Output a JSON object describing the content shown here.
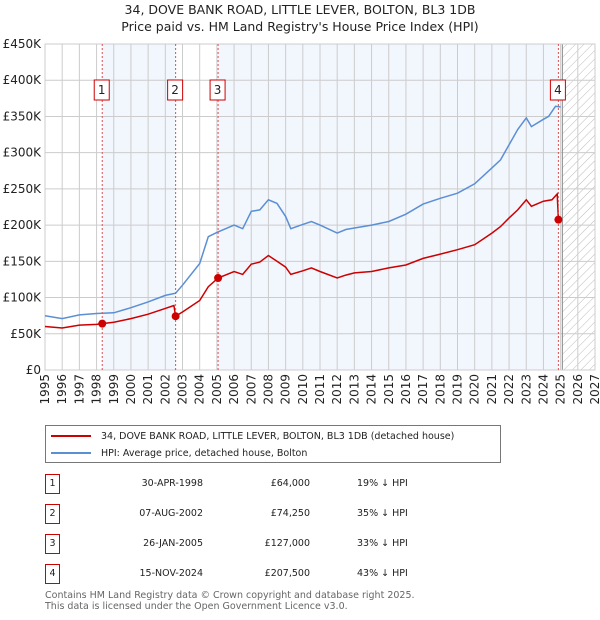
{
  "title_line1": "34, DOVE BANK ROAD, LITTLE LEVER, BOLTON, BL3 1DB",
  "title_line2": "Price paid vs. HM Land Registry's House Price Index (HPI)",
  "legend": {
    "property": "34, DOVE BANK ROAD, LITTLE LEVER, BOLTON, BL3 1DB (detached house)",
    "hpi": "HPI: Average price, detached house, Bolton"
  },
  "colors": {
    "property": "#cc0000",
    "hpi": "#5b8fd4",
    "shade": "#f2f6fd"
  },
  "sales": [
    {
      "num": "1",
      "date": "30-APR-1998",
      "price": "£64,000",
      "hpi_diff": "19% ↓ HPI",
      "x": 1998.33,
      "y": 64000
    },
    {
      "num": "2",
      "date": "07-AUG-2002",
      "price": "£74,250",
      "hpi_diff": "35% ↓ HPI",
      "x": 2002.6,
      "y": 74250
    },
    {
      "num": "3",
      "date": "26-JAN-2005",
      "price": "£127,000",
      "hpi_diff": "33% ↓ HPI",
      "x": 2005.07,
      "y": 127000
    },
    {
      "num": "4",
      "date": "15-NOV-2024",
      "price": "£207,500",
      "hpi_diff": "43% ↓ HPI",
      "x": 2024.87,
      "y": 207500
    }
  ],
  "footer_line1": "Contains HM Land Registry data © Crown copyright and database right 2025.",
  "footer_line2": "This data is licensed under the Open Government Licence v3.0.",
  "chart_data": {
    "type": "line",
    "title": "34, DOVE BANK ROAD, LITTLE LEVER, BOLTON, BL3 1DB — Price paid vs. HM Land Registry's House Price Index (HPI)",
    "xlim": [
      1995,
      2027
    ],
    "ylim": [
      0,
      450000
    ],
    "x_ticks": [
      "1995",
      "1996",
      "1997",
      "1998",
      "1999",
      "2000",
      "2001",
      "2002",
      "2003",
      "2004",
      "2005",
      "2006",
      "2007",
      "2008",
      "2009",
      "2010",
      "2011",
      "2012",
      "2013",
      "2014",
      "2015",
      "2016",
      "2017",
      "2018",
      "2019",
      "2020",
      "2021",
      "2022",
      "2023",
      "2024",
      "2025",
      "2026",
      "2027"
    ],
    "y_ticks": [
      {
        "v": 0,
        "label": "£0"
      },
      {
        "v": 50000,
        "label": "£50K"
      },
      {
        "v": 100000,
        "label": "£100K"
      },
      {
        "v": 150000,
        "label": "£150K"
      },
      {
        "v": 200000,
        "label": "£200K"
      },
      {
        "v": 250000,
        "label": "£250K"
      },
      {
        "v": 300000,
        "label": "£300K"
      },
      {
        "v": 350000,
        "label": "£350K"
      },
      {
        "v": 400000,
        "label": "£400K"
      },
      {
        "v": 450000,
        "label": "£450K"
      }
    ],
    "grid": true,
    "forecast_hatch_from": 2025.1,
    "series": [
      {
        "name": "34, DOVE BANK ROAD, LITTLE LEVER, BOLTON, BL3 1DB (detached house)",
        "x": [
          1995,
          1996,
          1997,
          1998,
          1998.33,
          1999,
          2000,
          2001,
          2002,
          2002.5,
          2002.6,
          2003,
          2004,
          2004.5,
          2005.07,
          2006,
          2006.5,
          2007,
          2007.5,
          2008,
          2008.5,
          2009,
          2009.3,
          2010,
          2010.5,
          2011,
          2012,
          2012.5,
          2013,
          2014,
          2015,
          2016,
          2017,
          2018,
          2019,
          2020,
          2021,
          2021.5,
          2022,
          2022.5,
          2023,
          2023.3,
          2024,
          2024.5,
          2024.8,
          2024.87
        ],
        "values": [
          60000,
          58000,
          62000,
          63000,
          64000,
          66000,
          71000,
          77000,
          85000,
          89000,
          74250,
          80000,
          96000,
          115000,
          127000,
          136000,
          132000,
          146000,
          149000,
          158000,
          150000,
          142000,
          132000,
          137000,
          141000,
          136000,
          127000,
          131000,
          134000,
          136000,
          141000,
          145000,
          154000,
          160000,
          166000,
          173000,
          189000,
          198000,
          210000,
          221000,
          235000,
          226000,
          233000,
          235000,
          243000,
          207500
        ]
      },
      {
        "name": "HPI: Average price, detached house, Bolton",
        "x": [
          1995,
          1996,
          1997,
          1998,
          1999,
          2000,
          2001,
          2002,
          2002.6,
          2003,
          2004,
          2004.5,
          2005,
          2006,
          2006.5,
          2007,
          2007.5,
          2008,
          2008.5,
          2009,
          2009.3,
          2010,
          2010.5,
          2011,
          2012,
          2012.5,
          2013,
          2014,
          2015,
          2016,
          2017,
          2018,
          2019,
          2020,
          2021,
          2021.5,
          2022,
          2022.5,
          2023,
          2023.3,
          2024,
          2024.3,
          2024.7,
          2025
        ],
        "values": [
          75000,
          71000,
          76000,
          78000,
          79000,
          86000,
          94000,
          103000,
          106000,
          117000,
          147000,
          184000,
          190000,
          200000,
          195000,
          219000,
          221000,
          235000,
          230000,
          212000,
          195000,
          201000,
          205000,
          200000,
          189000,
          194000,
          196000,
          200000,
          205000,
          215000,
          229000,
          237000,
          244000,
          257000,
          279000,
          290000,
          311000,
          332000,
          348000,
          336000,
          346000,
          350000,
          364000,
          363000
        ]
      }
    ]
  }
}
